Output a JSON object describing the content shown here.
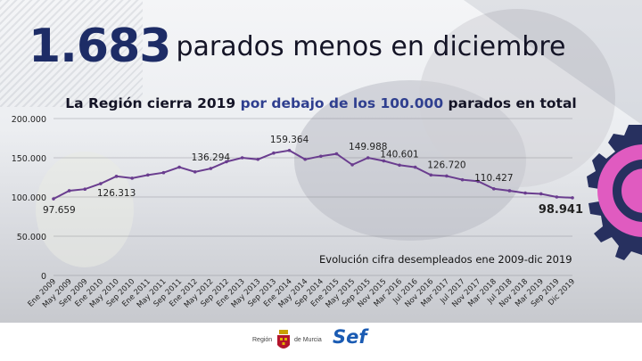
{
  "headline": {
    "number": "1.683",
    "text": "parados menos en diciembre"
  },
  "subtitle": {
    "part1": "La Región cierra 2019 ",
    "highlight": "por debajo de los 100.000",
    "part2": " parados en total"
  },
  "chart_data": {
    "type": "line",
    "title": "",
    "annotation": "Evolución cifra desempleados ene 2009-dic 2019",
    "ylim": [
      0,
      200000
    ],
    "y_ticks": [
      "200.000",
      "150.000",
      "100.000",
      "50.000",
      "0"
    ],
    "y_tick_values": [
      200000,
      150000,
      100000,
      50000,
      0
    ],
    "x_tick_labels": [
      "Ene 2009",
      "May 2009",
      "Sep 2009",
      "Ene 2010",
      "May 2010",
      "Sep 2010",
      "Ene 2011",
      "May 2011",
      "Sep 2011",
      "Ene 2012",
      "May 2012",
      "Sep 2012",
      "Ene 2013",
      "May 2013",
      "Sep 2013",
      "Ene 2014",
      "May 2014",
      "Sep 2014",
      "Ene 2015",
      "May 2015",
      "Sep 2015",
      "Nov 2015",
      "Mar 2016",
      "Jul 2016",
      "Nov 2016",
      "Mar 2017",
      "Jul 2017",
      "Nov 2017",
      "Mar 2018",
      "Jul 2018",
      "Nov 2018",
      "Mar 2019",
      "Sep 2019",
      "Dic 2019"
    ],
    "line_color": "#6a3d8f",
    "series": [
      {
        "values": [
          97659,
          108000,
          110000,
          117000,
          126313,
          124000,
          128000,
          131000,
          138000,
          132000,
          136294,
          145000,
          150000,
          148000,
          156000,
          159364,
          148000,
          152000,
          155000,
          141000,
          149988,
          146000,
          140601,
          138000,
          128000,
          126720,
          122000,
          120000,
          110427,
          108000,
          105000,
          104000,
          100000,
          98941
        ]
      }
    ],
    "data_labels": [
      {
        "index": 0,
        "text": "97.659"
      },
      {
        "index": 4,
        "text": "126.313"
      },
      {
        "index": 10,
        "text": "136.294"
      },
      {
        "index": 15,
        "text": "159.364"
      },
      {
        "index": 20,
        "text": "149.988"
      },
      {
        "index": 22,
        "text": "140.601"
      },
      {
        "index": 25,
        "text": "126.720"
      },
      {
        "index": 28,
        "text": "110.427"
      },
      {
        "index": 33,
        "text": "98.941"
      }
    ]
  },
  "footer": {
    "region_left": "Región",
    "region_right": "de Murcia",
    "sef": "Sef"
  }
}
